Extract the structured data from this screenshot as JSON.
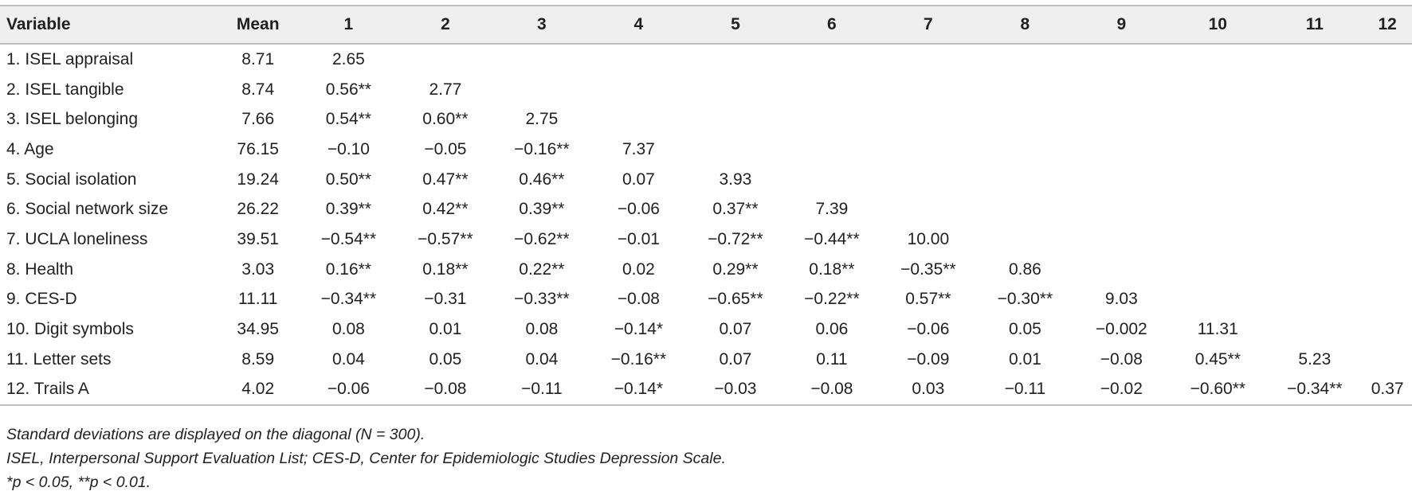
{
  "table": {
    "headers": [
      "Variable",
      "Mean",
      "1",
      "2",
      "3",
      "4",
      "5",
      "6",
      "7",
      "8",
      "9",
      "10",
      "11",
      "12"
    ],
    "rows": [
      [
        "1. ISEL appraisal",
        "8.71",
        "2.65",
        "",
        "",
        "",
        "",
        "",
        "",
        "",
        "",
        "",
        "",
        ""
      ],
      [
        "2. ISEL tangible",
        "8.74",
        "0.56**",
        "2.77",
        "",
        "",
        "",
        "",
        "",
        "",
        "",
        "",
        "",
        ""
      ],
      [
        "3. ISEL belonging",
        "7.66",
        "0.54**",
        "0.60**",
        "2.75",
        "",
        "",
        "",
        "",
        "",
        "",
        "",
        "",
        ""
      ],
      [
        "4. Age",
        "76.15",
        "−0.10",
        "−0.05",
        "−0.16**",
        "7.37",
        "",
        "",
        "",
        "",
        "",
        "",
        "",
        ""
      ],
      [
        "5. Social isolation",
        "19.24",
        "0.50**",
        "0.47**",
        "0.46**",
        "0.07",
        "3.93",
        "",
        "",
        "",
        "",
        "",
        "",
        ""
      ],
      [
        "6. Social network size",
        "26.22",
        "0.39**",
        "0.42**",
        "0.39**",
        "−0.06",
        "0.37**",
        "7.39",
        "",
        "",
        "",
        "",
        "",
        ""
      ],
      [
        "7. UCLA loneliness",
        "39.51",
        "−0.54**",
        "−0.57**",
        "−0.62**",
        "−0.01",
        "−0.72**",
        "−0.44**",
        "10.00",
        "",
        "",
        "",
        "",
        ""
      ],
      [
        "8. Health",
        "3.03",
        "0.16**",
        "0.18**",
        "0.22**",
        "0.02",
        "0.29**",
        "0.18**",
        "−0.35**",
        "0.86",
        "",
        "",
        "",
        ""
      ],
      [
        "9. CES-D",
        "11.11",
        "−0.34**",
        "−0.31",
        "−0.33**",
        "−0.08",
        "−0.65**",
        "−0.22**",
        "0.57**",
        "−0.30**",
        "9.03",
        "",
        "",
        ""
      ],
      [
        "10. Digit symbols",
        "34.95",
        "0.08",
        "0.01",
        "0.08",
        "−0.14*",
        "0.07",
        "0.06",
        "−0.06",
        "0.05",
        "−0.002",
        "11.31",
        "",
        ""
      ],
      [
        "11. Letter sets",
        "8.59",
        "0.04",
        "0.05",
        "0.04",
        "−0.16**",
        "0.07",
        "0.11",
        "−0.09",
        "0.01",
        "−0.08",
        "0.45**",
        "5.23",
        ""
      ],
      [
        "12. Trails A",
        "4.02",
        "−0.06",
        "−0.08",
        "−0.11",
        "−0.14*",
        "−0.03",
        "−0.08",
        "0.03",
        "−0.11",
        "−0.02",
        "−0.60**",
        "−0.34**",
        "0.37"
      ]
    ]
  },
  "notes": [
    "Standard deviations are displayed on the diagonal (N = 300).",
    "ISEL, Interpersonal Support Evaluation List; CES-D, Center for Epidemiologic Studies Depression Scale.",
    "*p < 0.05, **p < 0.01."
  ]
}
